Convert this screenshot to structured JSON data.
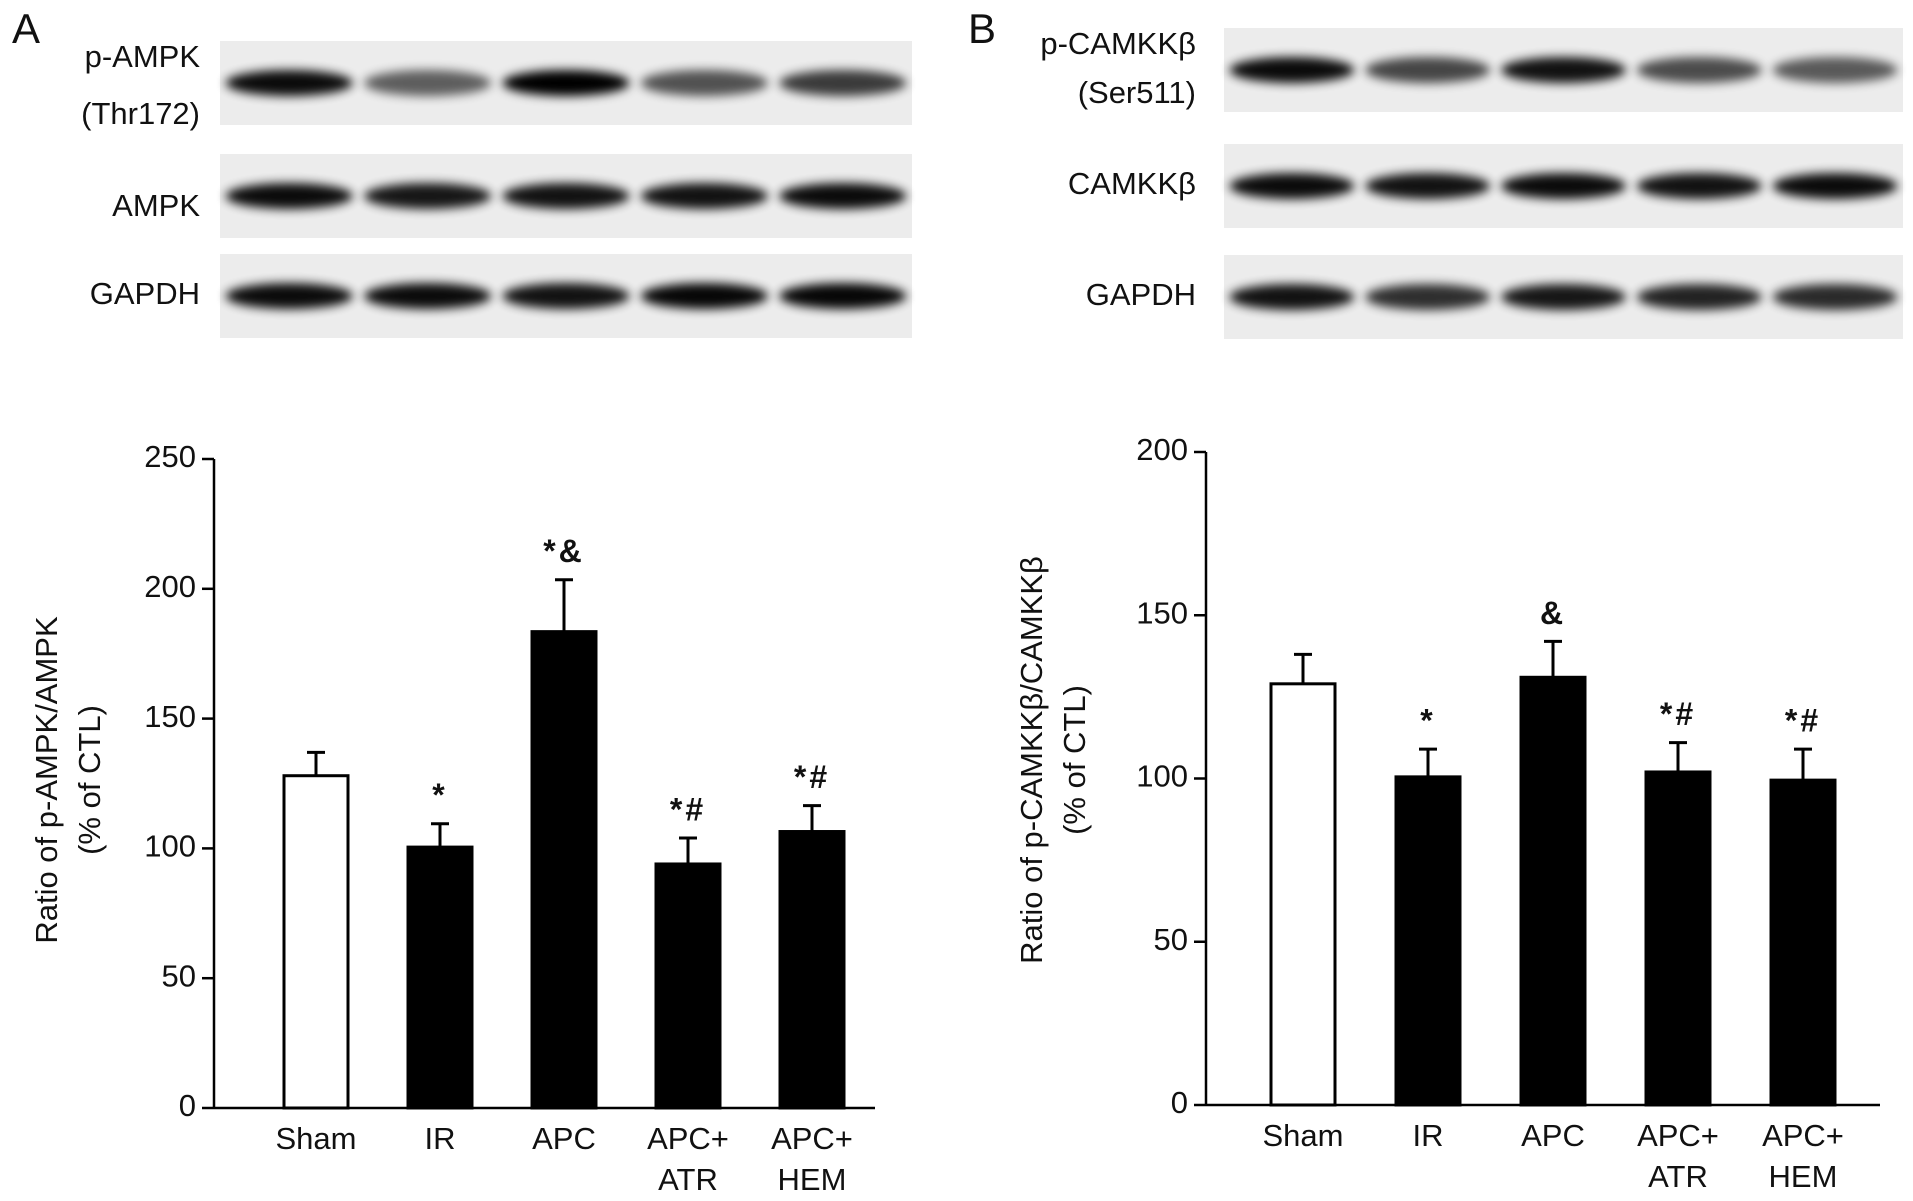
{
  "chart_data": [
    {
      "type": "bar",
      "panel_label": "A",
      "blot_labels": [
        [
          "p-AMPK",
          "(Thr172)"
        ],
        [
          "AMPK"
        ],
        [
          "GAPDH"
        ]
      ],
      "ylabel": [
        "Ratio of p-AMPK/AMPK",
        "(% of CTL)"
      ],
      "categories": [
        [
          "Sham"
        ],
        [
          "IR"
        ],
        [
          "APC"
        ],
        [
          "APC+",
          "ATR"
        ],
        [
          "APC+",
          "HEM"
        ]
      ],
      "values": [
        128,
        100.5,
        183.5,
        94,
        106.5
      ],
      "errors": [
        9,
        9,
        20,
        10,
        10
      ],
      "colors": [
        "#ffffff",
        "#000000",
        "#000000",
        "#000000",
        "#000000"
      ],
      "annotations": [
        null,
        "*",
        "*&",
        "*#",
        "*#"
      ],
      "ylim": [
        0,
        250
      ],
      "yticks": [
        0,
        50,
        100,
        150,
        200,
        250
      ]
    },
    {
      "type": "bar",
      "panel_label": "B",
      "blot_labels": [
        [
          "p-CAMKKβ",
          "(Ser511)"
        ],
        [
          "CAMKKβ"
        ],
        [
          "GAPDH"
        ]
      ],
      "ylabel": [
        "Ratio of p-CAMKKβ/CAMKKβ",
        "(% of CTL)"
      ],
      "categories": [
        [
          "Sham"
        ],
        [
          "IR"
        ],
        [
          "APC"
        ],
        [
          "APC+",
          "ATR"
        ],
        [
          "APC+",
          "HEM"
        ]
      ],
      "values": [
        129,
        100.5,
        131,
        102,
        99.5
      ],
      "errors": [
        9,
        8.5,
        11,
        9,
        9.5
      ],
      "colors": [
        "#ffffff",
        "#000000",
        "#000000",
        "#000000",
        "#000000"
      ],
      "annotations": [
        null,
        "*",
        "&",
        "*#",
        "*#"
      ],
      "ylim": [
        0,
        200
      ],
      "yticks": [
        0,
        50,
        100,
        150,
        200
      ]
    }
  ]
}
